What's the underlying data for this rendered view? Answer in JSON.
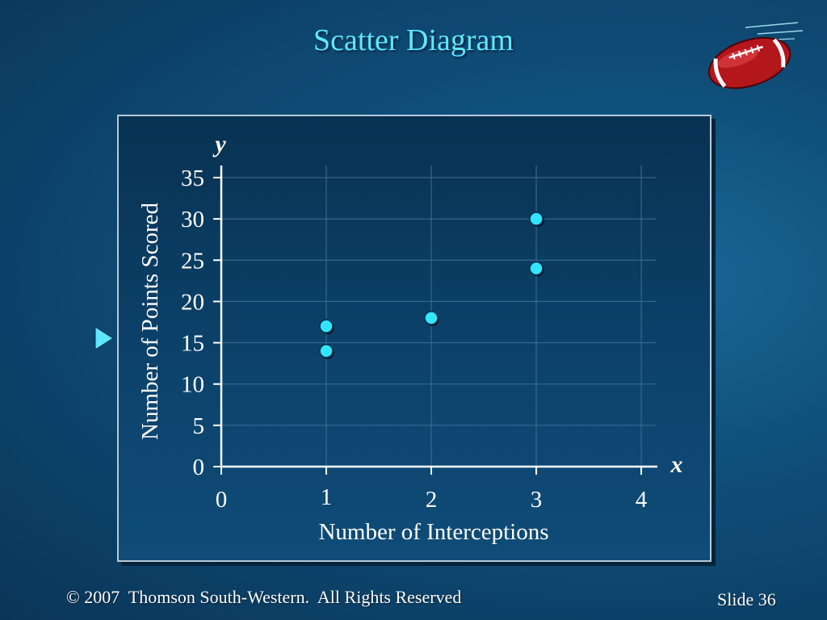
{
  "slide": {
    "title": "Scatter Diagram",
    "copyright": "© 2007  Thomson South-Western.  All Rights Reserved",
    "slide_number": "Slide 36",
    "logo_icon": "football-icon",
    "bullet_icon": "triangle-bullet-icon"
  },
  "colors": {
    "title": "#5ee8ff",
    "marker": "#33e6ff",
    "axis": "#ffffff",
    "grid": "#3f6f94"
  },
  "chart_data": {
    "type": "scatter",
    "title": "",
    "xlabel": "Number of Interceptions",
    "ylabel": "Number of Points Scored",
    "x_axis_letter": "x",
    "y_axis_letter": "y",
    "xlim": [
      0,
      4
    ],
    "ylim": [
      0,
      35
    ],
    "x_ticks": [
      0,
      1,
      2,
      3,
      4
    ],
    "y_ticks": [
      0,
      5,
      10,
      15,
      20,
      25,
      30,
      35
    ],
    "grid": true,
    "points": [
      {
        "x": 1,
        "y": 14
      },
      {
        "x": 1,
        "y": 17
      },
      {
        "x": 2,
        "y": 18
      },
      {
        "x": 3,
        "y": 24
      },
      {
        "x": 3,
        "y": 30
      }
    ]
  }
}
